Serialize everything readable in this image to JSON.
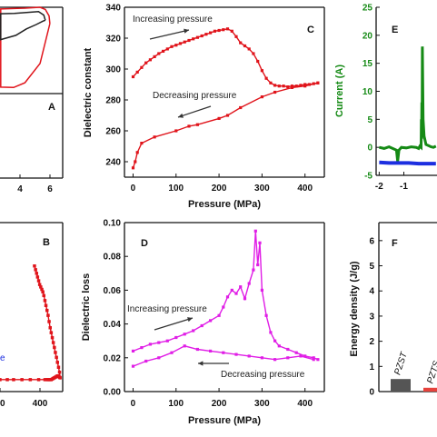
{
  "colors": {
    "axis": "#111111",
    "red": "#e0141b",
    "magenta": "#e01ee6",
    "green": "#158a15",
    "blue": "#1c2ee0",
    "dark": "#222222",
    "bar_gray": "#555555",
    "bar_red": "#e6423c"
  },
  "chart_data": [
    {
      "panel": "A",
      "type": "line",
      "panel_label": "A",
      "xlabel": "",
      "ylabel": "",
      "xticks": [
        "4",
        "6"
      ],
      "xlim": [
        -1.3,
        7
      ],
      "ylim": [
        -1,
        1
      ],
      "series": [
        {
          "color": "red",
          "x": [
            5.3,
            5.2,
            4.7,
            4.0,
            2.0,
            0.5,
            -1.2,
            -1.2,
            0.5,
            2.0,
            4.0,
            5.3
          ],
          "y": [
            0.62,
            0.8,
            0.95,
            1.0,
            0.98,
            0.97,
            0.96,
            -0.85,
            -0.86,
            -0.75,
            -0.3,
            0.62
          ]
        },
        {
          "color": "dark",
          "x": [
            4.7,
            4.5,
            3.8,
            2.2,
            0.6,
            -1.2,
            -1.2,
            0.8,
            2.2,
            3.5,
            4.4,
            4.7
          ],
          "y": [
            0.7,
            0.82,
            0.9,
            0.88,
            0.86,
            0.85,
            0.25,
            0.35,
            0.5,
            0.6,
            0.68,
            0.7
          ]
        }
      ]
    },
    {
      "panel": "B",
      "type": "line",
      "panel_label": "B",
      "xlabel": "",
      "ylabel": "",
      "xticks": [
        "00",
        "400"
      ],
      "legend_fragment": "e",
      "xlim": [
        -130,
        470
      ],
      "ylim": [
        0,
        1
      ],
      "series": [
        {
          "color": "red",
          "x": [
            -130,
            -60,
            0,
            80,
            160,
            240,
            300,
            320,
            330,
            340,
            350,
            360,
            370,
            380,
            390,
            400,
            410,
            420,
            430,
            440,
            445,
            440,
            430,
            420,
            410,
            400,
            390,
            380,
            370,
            360,
            350,
            340,
            330,
            320,
            310,
            300,
            290,
            280,
            270,
            260,
            250,
            240,
            230,
            220,
            210,
            200
          ],
          "y": [
            0.06,
            0.06,
            0.06,
            0.06,
            0.06,
            0.06,
            0.06,
            0.06,
            0.06,
            0.06,
            0.06,
            0.06,
            0.065,
            0.07,
            0.075,
            0.08,
            0.085,
            0.09,
            0.085,
            0.08,
            0.075,
            0.12,
            0.16,
            0.2,
            0.24,
            0.28,
            0.32,
            0.36,
            0.4,
            0.44,
            0.48,
            0.53,
            0.58,
            0.62,
            0.66,
            0.7,
            0.74,
            0.77,
            0.79,
            0.81,
            0.83,
            0.86,
            0.89,
            0.92,
            0.95,
            0.98
          ]
        }
      ]
    },
    {
      "panel": "C",
      "type": "line",
      "panel_label": "C",
      "xlabel": "Pressure (MPa)",
      "ylabel": "Dielectric constant",
      "xlim": [
        -20,
        445
      ],
      "ylim": [
        230,
        340
      ],
      "xticks": [
        0,
        100,
        200,
        300,
        400
      ],
      "yticks": [
        240,
        260,
        280,
        300,
        320,
        340
      ],
      "annotations": [
        "Increasing pressure",
        "Decreasing pressure"
      ],
      "series": [
        {
          "name": "Increasing pressure",
          "color": "red",
          "x": [
            0,
            10,
            20,
            30,
            40,
            50,
            60,
            70,
            80,
            90,
            100,
            110,
            120,
            130,
            140,
            150,
            160,
            170,
            180,
            190,
            200,
            210,
            220,
            230,
            240,
            250,
            260,
            270,
            280,
            290,
            300,
            310,
            320,
            330,
            340,
            350,
            360,
            370,
            380,
            390,
            400,
            410,
            420,
            430
          ],
          "y": [
            295,
            298,
            301,
            304,
            306,
            308,
            310,
            311.5,
            313,
            314.5,
            315.5,
            316.5,
            317.5,
            318.5,
            319.5,
            320.5,
            321.5,
            322.5,
            323.5,
            324.5,
            325,
            325.5,
            326,
            324.5,
            321,
            317,
            315,
            313,
            310,
            305,
            299,
            294,
            291,
            289.5,
            289,
            289,
            288.5,
            289,
            289,
            289.5,
            290,
            290,
            290.5,
            291
          ]
        },
        {
          "name": "Decreasing pressure",
          "color": "red",
          "x": [
            0,
            5,
            10,
            20,
            50,
            100,
            130,
            150,
            200,
            220,
            250,
            300,
            330,
            370,
            400,
            430
          ],
          "y": [
            236,
            240,
            246,
            252,
            256,
            260,
            263,
            264,
            268,
            270,
            275,
            282,
            285,
            288,
            289,
            291
          ]
        }
      ]
    },
    {
      "panel": "D",
      "type": "line",
      "panel_label": "D",
      "xlabel": "Pressure (MPa)",
      "ylabel": "Dielectric loss",
      "xlim": [
        -20,
        445
      ],
      "ylim": [
        0,
        0.1
      ],
      "xticks": [
        0,
        100,
        200,
        300,
        400
      ],
      "yticks": [
        "0.00",
        "0.02",
        "0.04",
        "0.06",
        "0.08",
        "0.10"
      ],
      "annotations": [
        "Increasing pressure",
        "Decreasing pressure"
      ],
      "series": [
        {
          "name": "Increasing pressure",
          "color": "magenta",
          "x": [
            0,
            20,
            40,
            60,
            80,
            100,
            120,
            140,
            160,
            180,
            200,
            210,
            220,
            230,
            240,
            250,
            260,
            270,
            280,
            285,
            290,
            295,
            300,
            310,
            320,
            330,
            340,
            360,
            380,
            400,
            420,
            430
          ],
          "y": [
            0.024,
            0.026,
            0.028,
            0.029,
            0.03,
            0.032,
            0.034,
            0.036,
            0.039,
            0.042,
            0.045,
            0.05,
            0.056,
            0.06,
            0.058,
            0.062,
            0.055,
            0.064,
            0.072,
            0.095,
            0.075,
            0.088,
            0.06,
            0.045,
            0.035,
            0.03,
            0.027,
            0.025,
            0.023,
            0.021,
            0.02,
            0.019
          ]
        },
        {
          "name": "Decreasing pressure",
          "color": "magenta",
          "x": [
            0,
            30,
            60,
            90,
            120,
            150,
            180,
            210,
            240,
            270,
            300,
            330,
            360,
            390,
            420
          ],
          "y": [
            0.015,
            0.018,
            0.02,
            0.023,
            0.027,
            0.025,
            0.024,
            0.023,
            0.022,
            0.021,
            0.02,
            0.019,
            0.02,
            0.021,
            0.019
          ]
        }
      ]
    },
    {
      "panel": "E",
      "type": "line",
      "panel_label": "E",
      "xlabel": "",
      "ylabel": "Current (A)",
      "xlim": [
        -2.05,
        0.75
      ],
      "ylim": [
        -5,
        25
      ],
      "xticks": [
        -2,
        -1
      ],
      "yticks": [
        -5,
        0,
        5,
        10,
        15,
        20,
        25
      ],
      "series": [
        {
          "color": "green",
          "x": [
            -2.0,
            -1.8,
            -1.6,
            -1.4,
            -1.3,
            -1.25,
            -1.2,
            -1.1,
            -0.9,
            -0.7,
            -0.5,
            -0.4,
            -0.35,
            -0.3,
            -0.29,
            -0.28,
            -0.27,
            -0.26,
            -0.25,
            -0.22,
            -0.18,
            -0.1,
            0.0,
            0.1,
            0.2,
            0.3
          ],
          "y": [
            0.0,
            -0.2,
            0.1,
            -0.3,
            -0.5,
            -2.5,
            -0.5,
            0.0,
            -0.1,
            0.1,
            0.0,
            -0.2,
            0.2,
            0.0,
            5.0,
            1.5,
            8.0,
            2.0,
            18.0,
            5.0,
            2.0,
            0.5,
            0.3,
            0.1,
            0.0,
            0.2
          ]
        },
        {
          "color": "blue",
          "x": [
            -2.0,
            -1.6,
            -1.2,
            -0.8,
            -0.4,
            -0.3,
            0.0,
            0.3
          ],
          "y": [
            -2.7,
            -2.8,
            -2.8,
            -2.8,
            -2.9,
            -2.9,
            -2.9,
            -2.9
          ]
        }
      ]
    },
    {
      "panel": "F",
      "type": "bar",
      "panel_label": "F",
      "ylabel": "Energy density (J/g)",
      "ylim": [
        0,
        6.5
      ],
      "yticks": [
        0,
        1,
        2,
        3,
        4,
        5,
        6
      ],
      "categories": [
        "PZST",
        "PZTS"
      ],
      "values": [
        0.5,
        0.15
      ],
      "bar_colors": [
        "bar_gray",
        "bar_red"
      ]
    }
  ]
}
